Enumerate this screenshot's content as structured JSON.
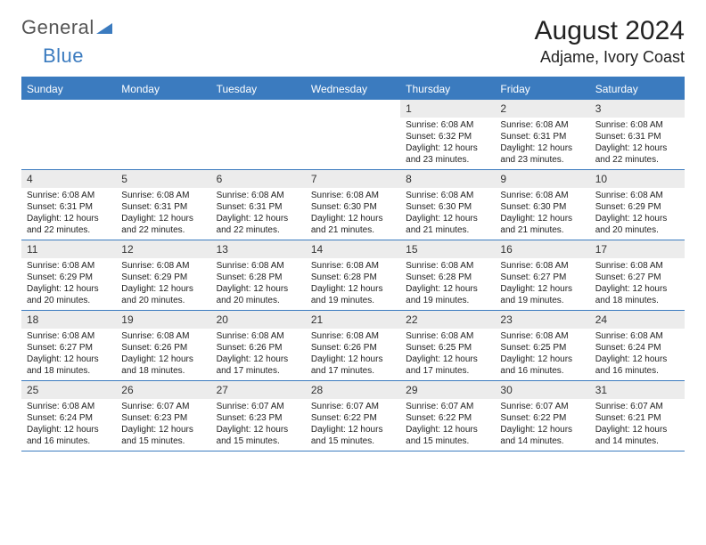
{
  "logo": {
    "general": "General",
    "blue": "Blue"
  },
  "title": "August 2024",
  "location": "Adjame, Ivory Coast",
  "colors": {
    "header_bg": "#3b7bbf",
    "daynum_bg": "#ececec",
    "border": "#3b7bbf",
    "text": "#222222",
    "logo_gray": "#555555",
    "logo_blue": "#3b7bbf"
  },
  "days_of_week": [
    "Sunday",
    "Monday",
    "Tuesday",
    "Wednesday",
    "Thursday",
    "Friday",
    "Saturday"
  ],
  "weeks": [
    [
      null,
      null,
      null,
      null,
      {
        "day": "1",
        "sunrise": "6:08 AM",
        "sunset": "6:32 PM",
        "daylight": "12 hours and 23 minutes."
      },
      {
        "day": "2",
        "sunrise": "6:08 AM",
        "sunset": "6:31 PM",
        "daylight": "12 hours and 23 minutes."
      },
      {
        "day": "3",
        "sunrise": "6:08 AM",
        "sunset": "6:31 PM",
        "daylight": "12 hours and 22 minutes."
      }
    ],
    [
      {
        "day": "4",
        "sunrise": "6:08 AM",
        "sunset": "6:31 PM",
        "daylight": "12 hours and 22 minutes."
      },
      {
        "day": "5",
        "sunrise": "6:08 AM",
        "sunset": "6:31 PM",
        "daylight": "12 hours and 22 minutes."
      },
      {
        "day": "6",
        "sunrise": "6:08 AM",
        "sunset": "6:31 PM",
        "daylight": "12 hours and 22 minutes."
      },
      {
        "day": "7",
        "sunrise": "6:08 AM",
        "sunset": "6:30 PM",
        "daylight": "12 hours and 21 minutes."
      },
      {
        "day": "8",
        "sunrise": "6:08 AM",
        "sunset": "6:30 PM",
        "daylight": "12 hours and 21 minutes."
      },
      {
        "day": "9",
        "sunrise": "6:08 AM",
        "sunset": "6:30 PM",
        "daylight": "12 hours and 21 minutes."
      },
      {
        "day": "10",
        "sunrise": "6:08 AM",
        "sunset": "6:29 PM",
        "daylight": "12 hours and 20 minutes."
      }
    ],
    [
      {
        "day": "11",
        "sunrise": "6:08 AM",
        "sunset": "6:29 PM",
        "daylight": "12 hours and 20 minutes."
      },
      {
        "day": "12",
        "sunrise": "6:08 AM",
        "sunset": "6:29 PM",
        "daylight": "12 hours and 20 minutes."
      },
      {
        "day": "13",
        "sunrise": "6:08 AM",
        "sunset": "6:28 PM",
        "daylight": "12 hours and 20 minutes."
      },
      {
        "day": "14",
        "sunrise": "6:08 AM",
        "sunset": "6:28 PM",
        "daylight": "12 hours and 19 minutes."
      },
      {
        "day": "15",
        "sunrise": "6:08 AM",
        "sunset": "6:28 PM",
        "daylight": "12 hours and 19 minutes."
      },
      {
        "day": "16",
        "sunrise": "6:08 AM",
        "sunset": "6:27 PM",
        "daylight": "12 hours and 19 minutes."
      },
      {
        "day": "17",
        "sunrise": "6:08 AM",
        "sunset": "6:27 PM",
        "daylight": "12 hours and 18 minutes."
      }
    ],
    [
      {
        "day": "18",
        "sunrise": "6:08 AM",
        "sunset": "6:27 PM",
        "daylight": "12 hours and 18 minutes."
      },
      {
        "day": "19",
        "sunrise": "6:08 AM",
        "sunset": "6:26 PM",
        "daylight": "12 hours and 18 minutes."
      },
      {
        "day": "20",
        "sunrise": "6:08 AM",
        "sunset": "6:26 PM",
        "daylight": "12 hours and 17 minutes."
      },
      {
        "day": "21",
        "sunrise": "6:08 AM",
        "sunset": "6:26 PM",
        "daylight": "12 hours and 17 minutes."
      },
      {
        "day": "22",
        "sunrise": "6:08 AM",
        "sunset": "6:25 PM",
        "daylight": "12 hours and 17 minutes."
      },
      {
        "day": "23",
        "sunrise": "6:08 AM",
        "sunset": "6:25 PM",
        "daylight": "12 hours and 16 minutes."
      },
      {
        "day": "24",
        "sunrise": "6:08 AM",
        "sunset": "6:24 PM",
        "daylight": "12 hours and 16 minutes."
      }
    ],
    [
      {
        "day": "25",
        "sunrise": "6:08 AM",
        "sunset": "6:24 PM",
        "daylight": "12 hours and 16 minutes."
      },
      {
        "day": "26",
        "sunrise": "6:07 AM",
        "sunset": "6:23 PM",
        "daylight": "12 hours and 15 minutes."
      },
      {
        "day": "27",
        "sunrise": "6:07 AM",
        "sunset": "6:23 PM",
        "daylight": "12 hours and 15 minutes."
      },
      {
        "day": "28",
        "sunrise": "6:07 AM",
        "sunset": "6:22 PM",
        "daylight": "12 hours and 15 minutes."
      },
      {
        "day": "29",
        "sunrise": "6:07 AM",
        "sunset": "6:22 PM",
        "daylight": "12 hours and 15 minutes."
      },
      {
        "day": "30",
        "sunrise": "6:07 AM",
        "sunset": "6:22 PM",
        "daylight": "12 hours and 14 minutes."
      },
      {
        "day": "31",
        "sunrise": "6:07 AM",
        "sunset": "6:21 PM",
        "daylight": "12 hours and 14 minutes."
      }
    ]
  ],
  "labels": {
    "sunrise": "Sunrise:",
    "sunset": "Sunset:",
    "daylight": "Daylight:"
  }
}
